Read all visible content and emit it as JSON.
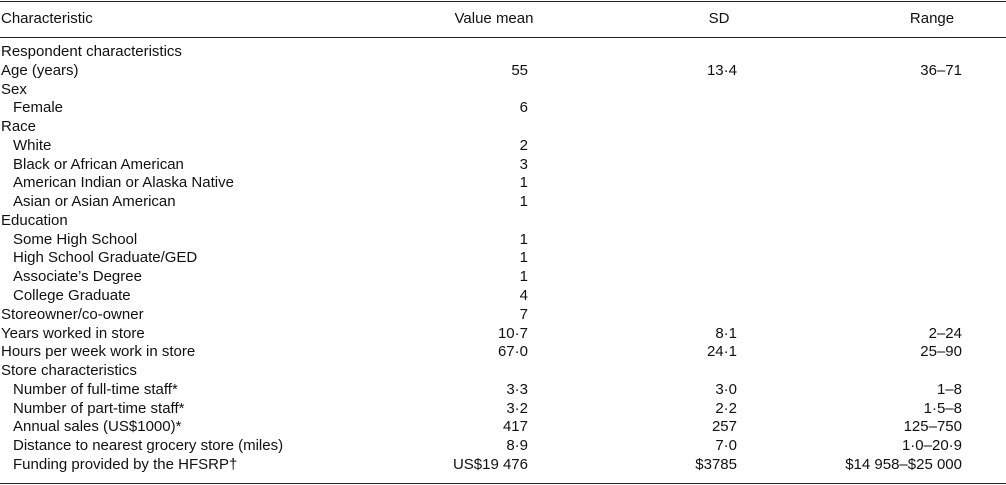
{
  "table": {
    "header": [
      "Characteristic",
      "Value mean",
      "SD",
      "Range"
    ],
    "rows": [
      {
        "cells": [
          "Respondent characteristics"
        ]
      },
      {
        "cells": [
          "Age (years)",
          "55",
          "13·4",
          "36–71"
        ]
      },
      {
        "cells": [
          "Sex"
        ],
        "items": [
          [
            "Female",
            "6"
          ]
        ]
      },
      {
        "cells": [
          "Race"
        ],
        "items": [
          [
            "White",
            "2"
          ],
          [
            "Black or African American",
            "3"
          ],
          [
            "American Indian or Alaska Native",
            "1"
          ],
          [
            "Asian or Asian American",
            "1"
          ]
        ]
      },
      {
        "cells": [
          "Education"
        ],
        "items": [
          [
            "Some High School",
            "1"
          ],
          [
            "High School Graduate/GED",
            "1"
          ],
          [
            "Associate’s Degree",
            "1"
          ],
          [
            "College Graduate",
            "4"
          ]
        ]
      },
      {
        "cells": [
          "Storeowner/co-owner",
          "7"
        ]
      },
      {
        "cells": [
          "Years worked in store",
          "10·7",
          "8·1",
          "2–24"
        ]
      },
      {
        "cells": [
          "Hours per week work in store",
          "67·0",
          "24·1",
          "25–90"
        ]
      },
      {
        "cells": [
          "Store characteristics"
        ],
        "items": [
          [
            "Number of full-time staff*",
            "3·3",
            "3·0",
            "1–8"
          ],
          [
            "Number of part-time staff*",
            "3·2",
            "2·2",
            "1·5–8"
          ],
          [
            "Annual sales (US$1000)*",
            "417",
            "257",
            "125–750"
          ],
          [
            "Distance to nearest grocery store (miles)",
            "8·9",
            "7·0",
            "1·0–20·9"
          ],
          [
            "Funding provided by the HFSRP†",
            "US$19 476",
            "$3785",
            "$14 958–$25 000"
          ]
        ]
      }
    ]
  }
}
